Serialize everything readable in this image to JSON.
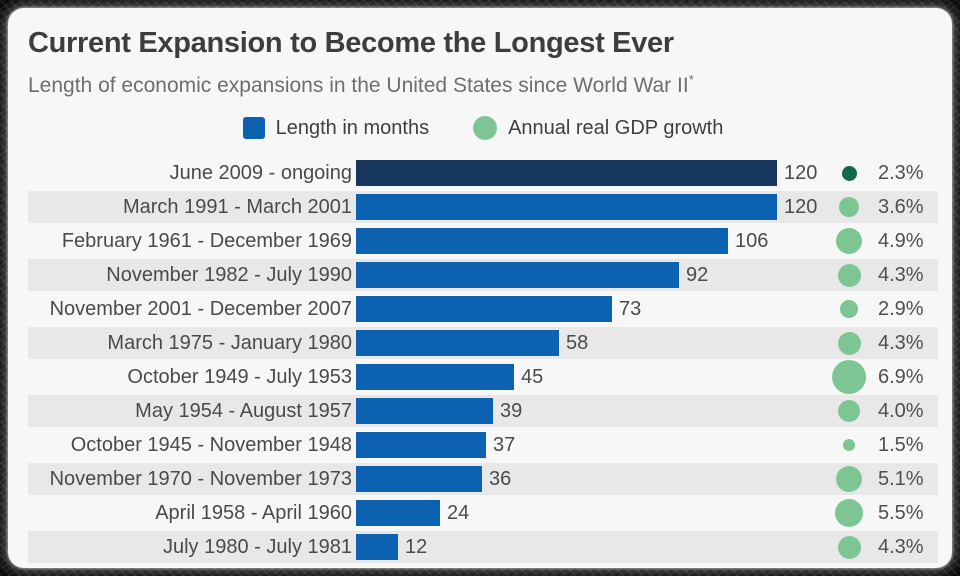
{
  "colors": {
    "bar_blue": "#0d61b1",
    "bar_navy": "#17375e",
    "dot_green": "#7dc694",
    "dot_green_dark": "#116a4b",
    "stripe": "#e8e8e8",
    "card_bg": "#f7f7f7",
    "title_text": "#3d3d3d",
    "subtitle_text": "#6e6e6e"
  },
  "chart_data": {
    "type": "bar",
    "orientation": "horizontal",
    "title": "Current Expansion to Become the Longest Ever",
    "subtitle": "Length of economic expansions in the United States since World War II",
    "subtitle_note": "*",
    "value_axis": {
      "min": 0,
      "max": 120,
      "unit": "months",
      "gridlines": false,
      "value_labels": "at bar end"
    },
    "legend": [
      {
        "label": "Length in months",
        "marker": "square",
        "color": "#0d61b1"
      },
      {
        "label": "Annual real GDP growth",
        "marker": "circle",
        "color": "#7dc694"
      }
    ],
    "rows": [
      {
        "label": "June 2009 - ongoing",
        "months": 120,
        "months_label": "120",
        "gdp": 2.3,
        "gdp_label": "2.3%",
        "highlight": true
      },
      {
        "label": "March 1991 - March 2001",
        "months": 120,
        "months_label": "120",
        "gdp": 3.6,
        "gdp_label": "3.6%",
        "highlight": false
      },
      {
        "label": "February 1961 - December 1969",
        "months": 106,
        "months_label": "106",
        "gdp": 4.9,
        "gdp_label": "4.9%",
        "highlight": false
      },
      {
        "label": "November 1982 - July 1990",
        "months": 92,
        "months_label": "92",
        "gdp": 4.3,
        "gdp_label": "4.3%",
        "highlight": false
      },
      {
        "label": "November 2001 - December 2007",
        "months": 73,
        "months_label": "73",
        "gdp": 2.9,
        "gdp_label": "2.9%",
        "highlight": false
      },
      {
        "label": "March 1975 - January 1980",
        "months": 58,
        "months_label": "58",
        "gdp": 4.3,
        "gdp_label": "4.3%",
        "highlight": false
      },
      {
        "label": "October 1949 - July 1953",
        "months": 45,
        "months_label": "45",
        "gdp": 6.9,
        "gdp_label": "6.9%",
        "highlight": false
      },
      {
        "label": "May 1954 - August 1957",
        "months": 39,
        "months_label": "39",
        "gdp": 4.0,
        "gdp_label": "4.0%",
        "highlight": false
      },
      {
        "label": "October 1945 - November 1948",
        "months": 37,
        "months_label": "37",
        "gdp": 1.5,
        "gdp_label": "1.5%",
        "highlight": false
      },
      {
        "label": "November 1970 - November 1973",
        "months": 36,
        "months_label": "36",
        "gdp": 5.1,
        "gdp_label": "5.1%",
        "highlight": false
      },
      {
        "label": "April 1958 - April 1960",
        "months": 24,
        "months_label": "24",
        "gdp": 5.5,
        "gdp_label": "5.5%",
        "highlight": false
      },
      {
        "label": "July 1980 - July 1981",
        "months": 12,
        "months_label": "12",
        "gdp": 4.3,
        "gdp_label": "4.3%",
        "highlight": false
      }
    ]
  }
}
